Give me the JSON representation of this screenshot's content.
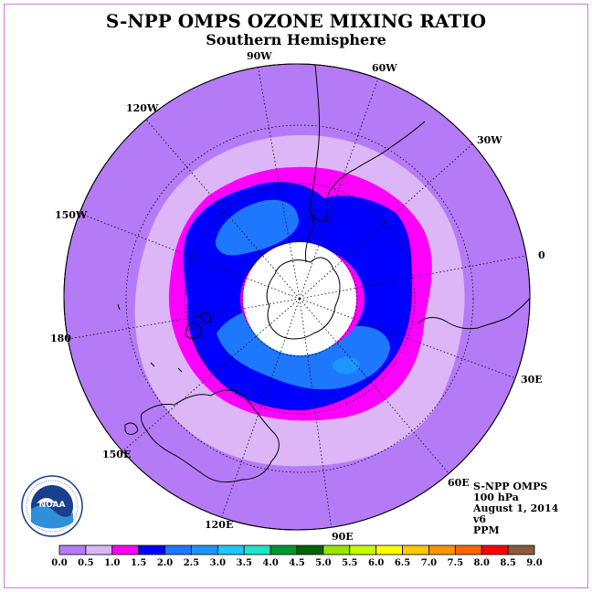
{
  "title": "S-NPP OMPS OZONE MIXING RATIO",
  "subtitle": "Southern Hemisphere",
  "logo": {
    "text": "NOAA",
    "ring_text": "NATIONAL OCEANIC AND ATMOSPHERIC ADMINISTRATION · U.S. DEPARTMENT OF COMMERCE"
  },
  "longitude_labels": [
    "90W",
    "60W",
    "30W",
    "0",
    "30E",
    "60E",
    "90E",
    "120E",
    "150E",
    "180",
    "150W",
    "120W"
  ],
  "info": {
    "instrument": "S-NPP OMPS",
    "level": "100 hPa",
    "date": "August 1, 2014",
    "version": "v6",
    "units": "PPM"
  },
  "colorbar": {
    "ticks": [
      "0.0",
      "0.5",
      "1.0",
      "1.5",
      "2.0",
      "2.5",
      "3.0",
      "3.5",
      "4.0",
      "4.5",
      "5.0",
      "5.5",
      "6.0",
      "6.5",
      "7.0",
      "7.5",
      "8.0",
      "8.5",
      "9.0"
    ],
    "colors": [
      "#b57bf7",
      "#dcb6f7",
      "#ff00ff",
      "#0000ff",
      "#1e78ff",
      "#1e96ff",
      "#1ec8ff",
      "#1ee6c8",
      "#009632",
      "#006400",
      "#96e600",
      "#c8ff00",
      "#ffff00",
      "#ffc800",
      "#ff9600",
      "#ff6400",
      "#ff0000",
      "#8c5a3c"
    ]
  },
  "map_colors": {
    "band_0_0_5": "#b57bf7",
    "band_0_5_1_0": "#dcb6f7",
    "band_1_0_1_5": "#ff00ff",
    "band_1_5_2_0": "#0000ff",
    "band_2_0_2_5": "#1e78ff",
    "band_2_5_3_0": "#1e96ff",
    "no_data": "#ffffff"
  }
}
